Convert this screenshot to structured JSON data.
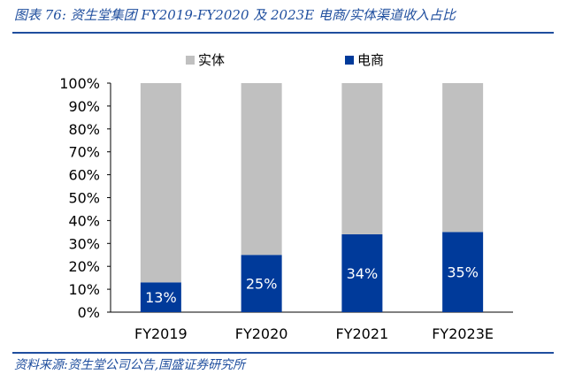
{
  "header": {
    "title": "图表 76: 资生堂集团 FY2019-FY2020 及 2023E 电商/实体渠道收入占比"
  },
  "footer": {
    "source": "资料来源:资生堂公司公告,国盛证券研究所"
  },
  "colors": {
    "accent": "#1f4e9e",
    "offline": "#c0c0c0",
    "online": "#003a9a"
  },
  "chart_data": {
    "type": "bar",
    "stacked": true,
    "categories": [
      "FY2019",
      "FY2020",
      "FY2021",
      "FY2023E"
    ],
    "series": [
      {
        "name": "实体",
        "values": [
          87,
          75,
          66,
          65
        ]
      },
      {
        "name": "电商",
        "values": [
          13,
          25,
          34,
          35
        ]
      }
    ],
    "data_labels": [
      "13%",
      "25%",
      "34%",
      "35%"
    ],
    "yticks": [
      "0%",
      "10%",
      "20%",
      "30%",
      "40%",
      "50%",
      "60%",
      "70%",
      "80%",
      "90%",
      "100%"
    ],
    "ylim": [
      0,
      100
    ],
    "legend_position": "top-center",
    "grid": false
  }
}
